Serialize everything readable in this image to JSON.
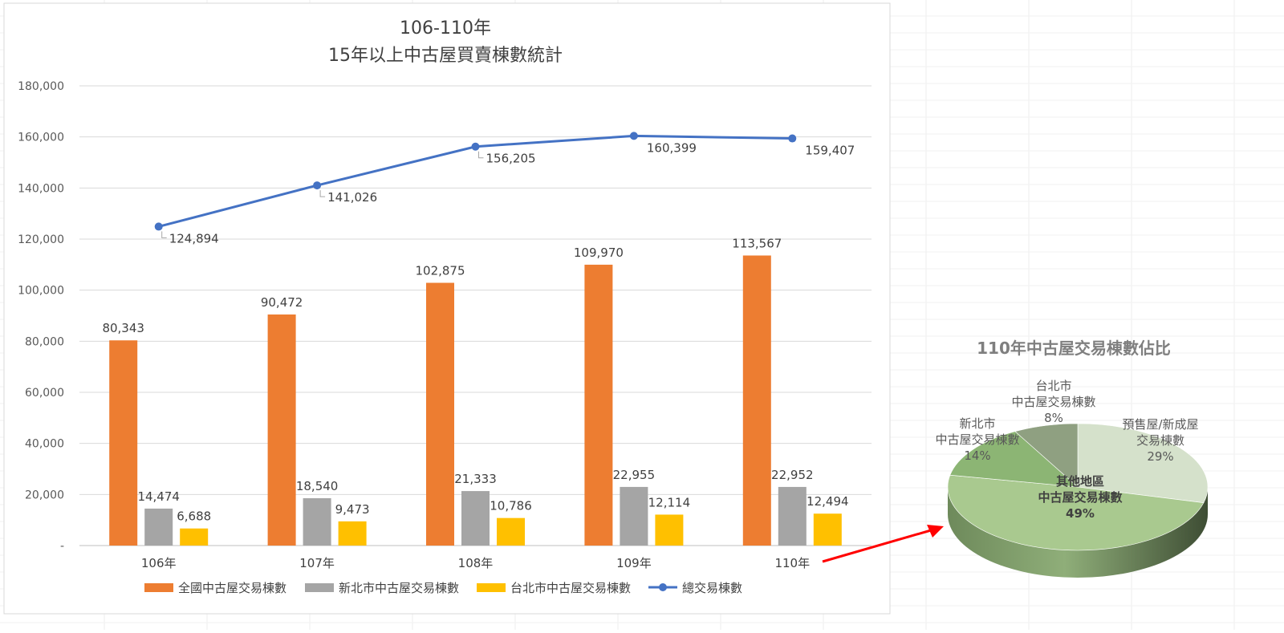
{
  "chart_data": [
    {
      "type": "bar",
      "title": "106-110年",
      "subtitle": "15年以上中古屋買賣棟數統計",
      "categories": [
        "106年",
        "107年",
        "108年",
        "109年",
        "110年"
      ],
      "ylim": [
        0,
        180000
      ],
      "yticks": [
        0,
        20000,
        40000,
        60000,
        80000,
        100000,
        120000,
        140000,
        160000,
        180000
      ],
      "ytick_labels": [
        "-",
        "20,000",
        "40,000",
        "60,000",
        "80,000",
        "100,000",
        "120,000",
        "140,000",
        "160,000",
        "180,000"
      ],
      "grid": true,
      "legend_position": "bottom",
      "series": [
        {
          "name": "全國中古屋交易棟數",
          "kind": "bar",
          "color": "#ED7D31",
          "values": [
            80343,
            90472,
            102875,
            109970,
            113567
          ],
          "labels": [
            "80,343",
            "90,472",
            "102,875",
            "109,970",
            "113,567"
          ]
        },
        {
          "name": "新北市中古屋交易棟數",
          "kind": "bar",
          "color": "#A5A5A5",
          "values": [
            14474,
            18540,
            21333,
            22955,
            22952
          ],
          "labels": [
            "14,474",
            "18,540",
            "21,333",
            "22,955",
            "22,952"
          ]
        },
        {
          "name": "台北市中古屋交易棟數",
          "kind": "bar",
          "color": "#FFC000",
          "values": [
            6688,
            9473,
            10786,
            12114,
            12494
          ],
          "labels": [
            "6,688",
            "9,473",
            "10,786",
            "12,114",
            "12,494"
          ]
        },
        {
          "name": "總交易棟數",
          "kind": "line",
          "color": "#4472C4",
          "values": [
            124894,
            141026,
            156205,
            160399,
            159407
          ],
          "labels": [
            "124,894",
            "141,026",
            "156,205",
            "160,399",
            "159,407"
          ]
        }
      ]
    },
    {
      "type": "pie",
      "title": "110年中古屋交易棟數佔比",
      "slices": [
        {
          "label_lines": [
            "預售屋/新成屋",
            "交易棟數"
          ],
          "pct_label": "29%",
          "value": 29,
          "color": "#D5E1CB"
        },
        {
          "label_lines": [
            "其他地區",
            "中古屋交易棟數"
          ],
          "pct_label": "49%",
          "value": 49,
          "color": "#A9C98F"
        },
        {
          "label_lines": [
            "新北市",
            "中古屋交易棟數"
          ],
          "pct_label": "14%",
          "value": 14,
          "color": "#8CB574"
        },
        {
          "label_lines": [
            "台北市",
            "中古屋交易棟數"
          ],
          "pct_label": "8%",
          "value": 8,
          "color": "#8FA081"
        }
      ]
    }
  ],
  "colors": {
    "arrow": "#FF0000",
    "gridline": "#D9D9D9",
    "axis_text": "#595959",
    "title_text": "#595959",
    "pie_title_text": "#7F7F7F"
  }
}
